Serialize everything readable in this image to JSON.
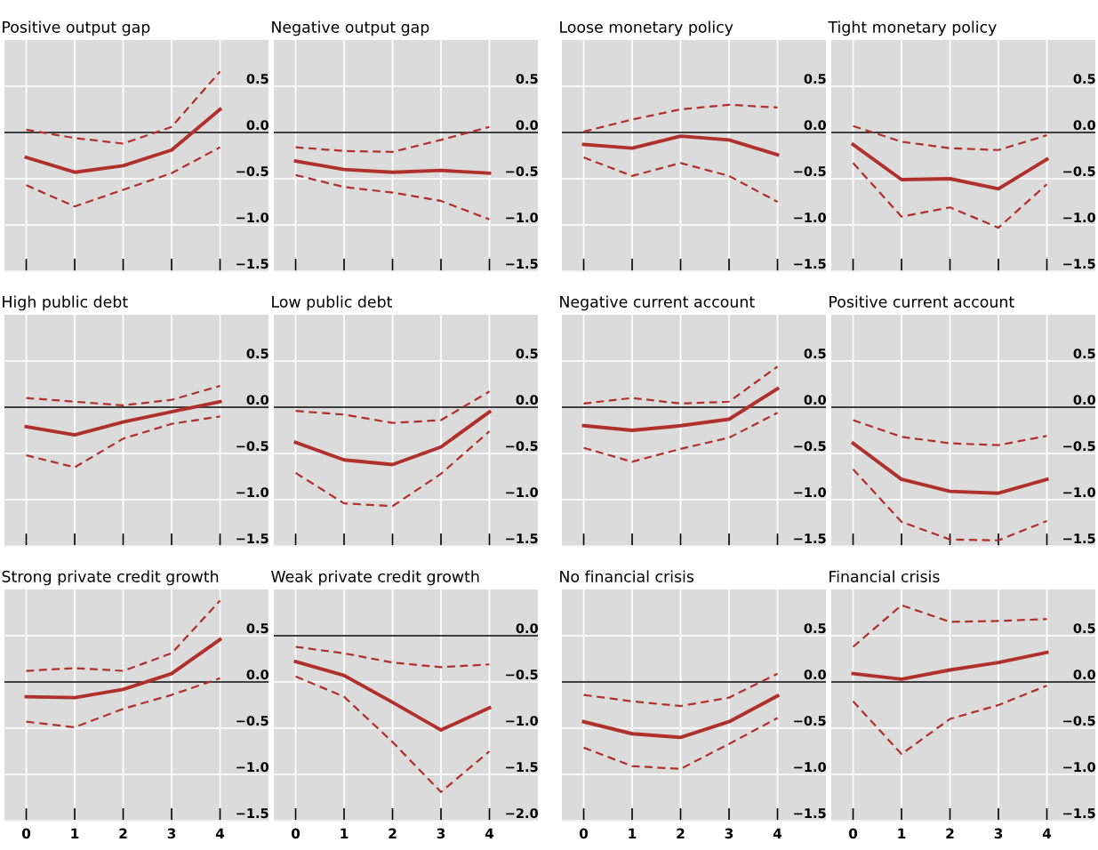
{
  "chart_data": [
    {
      "type": "line",
      "title": "Positive output gap",
      "x": [
        0,
        1,
        2,
        3,
        4
      ],
      "xlim": [
        -0.45,
        5.0
      ],
      "xticks": [
        0,
        1,
        2,
        3,
        4
      ],
      "ylim": [
        -1.5,
        1.0
      ],
      "yticks": [
        {
          "value": 0.5,
          "label": "0.5"
        },
        {
          "value": 0,
          "label": "0.0"
        },
        {
          "value": -0.5,
          "label": "−0.5"
        },
        {
          "value": -1.0,
          "label": "−1.0"
        },
        {
          "value": -1.5,
          "label": "−1.5"
        }
      ],
      "grid": true,
      "tick_labels": "y",
      "ref_lines": [
        {
          "axis": "y",
          "value": 0,
          "color": "#000000"
        }
      ],
      "series": [
        {
          "color": "#b0302c",
          "line_style": "solid",
          "values": [
            -0.27,
            -0.43,
            -0.36,
            -0.19,
            0.25
          ]
        },
        {
          "color": "#b0302c",
          "line_style": "dashed",
          "values": [
            0.03,
            -0.06,
            -0.12,
            0.06,
            0.66
          ]
        },
        {
          "color": "#b0302c",
          "line_style": "dashed",
          "values": [
            -0.57,
            -0.8,
            -0.62,
            -0.44,
            -0.16
          ]
        }
      ]
    },
    {
      "type": "line",
      "title": "Negative output gap",
      "x": [
        0,
        1,
        2,
        3,
        4
      ],
      "xlim": [
        -0.45,
        5.0
      ],
      "xticks": [
        0,
        1,
        2,
        3,
        4
      ],
      "ylim": [
        -1.5,
        1.0
      ],
      "yticks": [
        {
          "value": 0.5,
          "label": "0.5"
        },
        {
          "value": 0,
          "label": "0.0"
        },
        {
          "value": -0.5,
          "label": "−0.5"
        },
        {
          "value": -1.0,
          "label": "−1.0"
        },
        {
          "value": -1.5,
          "label": "−1.5"
        }
      ],
      "grid": true,
      "tick_labels": "y",
      "ref_lines": [
        {
          "axis": "y",
          "value": 0,
          "color": "#000000"
        }
      ],
      "series": [
        {
          "color": "#b0302c",
          "line_style": "solid",
          "values": [
            -0.31,
            -0.4,
            -0.43,
            -0.41,
            -0.44
          ]
        },
        {
          "color": "#b0302c",
          "line_style": "dashed",
          "values": [
            -0.16,
            -0.2,
            -0.21,
            -0.08,
            0.06
          ]
        },
        {
          "color": "#b0302c",
          "line_style": "dashed",
          "values": [
            -0.46,
            -0.59,
            -0.65,
            -0.74,
            -0.94
          ]
        }
      ]
    },
    {
      "type": "line",
      "title": "Loose monetary policy",
      "x": [
        0,
        1,
        2,
        3,
        4
      ],
      "xlim": [
        -0.45,
        5.0
      ],
      "xticks": [
        0,
        1,
        2,
        3,
        4
      ],
      "ylim": [
        -1.5,
        1.0
      ],
      "yticks": [
        {
          "value": 0.5,
          "label": "0.5"
        },
        {
          "value": 0,
          "label": "0.0"
        },
        {
          "value": -0.5,
          "label": "−0.5"
        },
        {
          "value": -1.0,
          "label": "−1.0"
        },
        {
          "value": -1.5,
          "label": "−1.5"
        }
      ],
      "grid": true,
      "tick_labels": "y",
      "ref_lines": [
        {
          "axis": "y",
          "value": 0,
          "color": "#000000"
        }
      ],
      "series": [
        {
          "color": "#b0302c",
          "line_style": "solid",
          "values": [
            -0.13,
            -0.17,
            -0.04,
            -0.08,
            -0.24
          ]
        },
        {
          "color": "#b0302c",
          "line_style": "dashed",
          "values": [
            0.01,
            0.14,
            0.25,
            0.3,
            0.27
          ]
        },
        {
          "color": "#b0302c",
          "line_style": "dashed",
          "values": [
            -0.27,
            -0.47,
            -0.33,
            -0.47,
            -0.75
          ]
        }
      ]
    },
    {
      "type": "line",
      "title": "Tight monetary policy",
      "x": [
        0,
        1,
        2,
        3,
        4
      ],
      "xlim": [
        -0.45,
        5.0
      ],
      "xticks": [
        0,
        1,
        2,
        3,
        4
      ],
      "ylim": [
        -1.5,
        1.0
      ],
      "yticks": [
        {
          "value": 0.5,
          "label": "0.5"
        },
        {
          "value": 0,
          "label": "0.0"
        },
        {
          "value": -0.5,
          "label": "−0.5"
        },
        {
          "value": -1.0,
          "label": "−1.0"
        },
        {
          "value": -1.5,
          "label": "−1.5"
        }
      ],
      "grid": true,
      "tick_labels": "y",
      "ref_lines": [
        {
          "axis": "y",
          "value": 0,
          "color": "#000000"
        }
      ],
      "series": [
        {
          "color": "#b0302c",
          "line_style": "solid",
          "values": [
            -0.13,
            -0.51,
            -0.5,
            -0.61,
            -0.29
          ]
        },
        {
          "color": "#b0302c",
          "line_style": "dashed",
          "values": [
            0.07,
            -0.1,
            -0.17,
            -0.19,
            -0.03
          ]
        },
        {
          "color": "#b0302c",
          "line_style": "dashed",
          "values": [
            -0.33,
            -0.91,
            -0.81,
            -1.03,
            -0.56
          ]
        }
      ]
    },
    {
      "type": "line",
      "title": "High public debt",
      "x": [
        0,
        1,
        2,
        3,
        4
      ],
      "xlim": [
        -0.45,
        5.0
      ],
      "xticks": [
        0,
        1,
        2,
        3,
        4
      ],
      "ylim": [
        -1.5,
        1.0
      ],
      "yticks": [
        {
          "value": 0.5,
          "label": "0.5"
        },
        {
          "value": 0,
          "label": "0.0"
        },
        {
          "value": -0.5,
          "label": "−0.5"
        },
        {
          "value": -1.0,
          "label": "−1.0"
        },
        {
          "value": -1.5,
          "label": "−1.5"
        }
      ],
      "grid": true,
      "tick_labels": "y",
      "ref_lines": [
        {
          "axis": "y",
          "value": 0,
          "color": "#000000"
        }
      ],
      "series": [
        {
          "color": "#b0302c",
          "line_style": "solid",
          "values": [
            -0.21,
            -0.3,
            -0.16,
            -0.05,
            0.06
          ]
        },
        {
          "color": "#b0302c",
          "line_style": "dashed",
          "values": [
            0.1,
            0.06,
            0.02,
            0.08,
            0.23
          ]
        },
        {
          "color": "#b0302c",
          "line_style": "dashed",
          "values": [
            -0.52,
            -0.65,
            -0.34,
            -0.18,
            -0.1
          ]
        }
      ]
    },
    {
      "type": "line",
      "title": "Low public debt",
      "x": [
        0,
        1,
        2,
        3,
        4
      ],
      "xlim": [
        -0.45,
        5.0
      ],
      "xticks": [
        0,
        1,
        2,
        3,
        4
      ],
      "ylim": [
        -1.5,
        1.0
      ],
      "yticks": [
        {
          "value": 0.5,
          "label": "0.5"
        },
        {
          "value": 0,
          "label": "0.0"
        },
        {
          "value": -0.5,
          "label": "−0.5"
        },
        {
          "value": -1.0,
          "label": "−1.0"
        },
        {
          "value": -1.5,
          "label": "−1.5"
        }
      ],
      "grid": true,
      "tick_labels": "y",
      "ref_lines": [
        {
          "axis": "y",
          "value": 0,
          "color": "#000000"
        }
      ],
      "series": [
        {
          "color": "#b0302c",
          "line_style": "solid",
          "values": [
            -0.38,
            -0.57,
            -0.62,
            -0.43,
            -0.05
          ]
        },
        {
          "color": "#b0302c",
          "line_style": "dashed",
          "values": [
            -0.04,
            -0.08,
            -0.17,
            -0.14,
            0.17
          ]
        },
        {
          "color": "#b0302c",
          "line_style": "dashed",
          "values": [
            -0.71,
            -1.04,
            -1.07,
            -0.72,
            -0.26
          ]
        }
      ]
    },
    {
      "type": "line",
      "title": "Negative current account",
      "x": [
        0,
        1,
        2,
        3,
        4
      ],
      "xlim": [
        -0.45,
        5.0
      ],
      "xticks": [
        0,
        1,
        2,
        3,
        4
      ],
      "ylim": [
        -1.5,
        1.0
      ],
      "yticks": [
        {
          "value": 0.5,
          "label": "0.5"
        },
        {
          "value": 0,
          "label": "0.0"
        },
        {
          "value": -0.5,
          "label": "−0.5"
        },
        {
          "value": -1.0,
          "label": "−1.0"
        },
        {
          "value": -1.5,
          "label": "−1.5"
        }
      ],
      "grid": true,
      "tick_labels": "y",
      "ref_lines": [
        {
          "axis": "y",
          "value": 0,
          "color": "#000000"
        }
      ],
      "series": [
        {
          "color": "#b0302c",
          "line_style": "solid",
          "values": [
            -0.2,
            -0.25,
            -0.2,
            -0.13,
            0.2
          ]
        },
        {
          "color": "#b0302c",
          "line_style": "dashed",
          "values": [
            0.04,
            0.1,
            0.04,
            0.06,
            0.44
          ]
        },
        {
          "color": "#b0302c",
          "line_style": "dashed",
          "values": [
            -0.44,
            -0.59,
            -0.45,
            -0.33,
            -0.06
          ]
        }
      ]
    },
    {
      "type": "line",
      "title": "Positive current account",
      "x": [
        0,
        1,
        2,
        3,
        4
      ],
      "xlim": [
        -0.45,
        5.0
      ],
      "xticks": [
        0,
        1,
        2,
        3,
        4
      ],
      "ylim": [
        -1.5,
        1.0
      ],
      "yticks": [
        {
          "value": 0.5,
          "label": "0.5"
        },
        {
          "value": 0,
          "label": "0.0"
        },
        {
          "value": -0.5,
          "label": "−0.5"
        },
        {
          "value": -1.0,
          "label": "−1.0"
        },
        {
          "value": -1.5,
          "label": "−1.5"
        }
      ],
      "grid": true,
      "tick_labels": "y",
      "ref_lines": [
        {
          "axis": "y",
          "value": 0,
          "color": "#000000"
        }
      ],
      "series": [
        {
          "color": "#b0302c",
          "line_style": "solid",
          "values": [
            -0.39,
            -0.78,
            -0.91,
            -0.93,
            -0.78
          ]
        },
        {
          "color": "#b0302c",
          "line_style": "dashed",
          "values": [
            -0.14,
            -0.32,
            -0.39,
            -0.41,
            -0.31
          ]
        },
        {
          "color": "#b0302c",
          "line_style": "dashed",
          "values": [
            -0.67,
            -1.24,
            -1.43,
            -1.44,
            -1.23
          ]
        }
      ]
    },
    {
      "type": "line",
      "title": "Strong private credit growth",
      "x": [
        0,
        1,
        2,
        3,
        4
      ],
      "xlim": [
        -0.45,
        5.0
      ],
      "xticks": [
        0,
        1,
        2,
        3,
        4
      ],
      "ylim": [
        -1.5,
        1.0
      ],
      "yticks": [
        {
          "value": 0.5,
          "label": "0.5"
        },
        {
          "value": 0,
          "label": "0.0"
        },
        {
          "value": -0.5,
          "label": "−0.5"
        },
        {
          "value": -1.0,
          "label": "−1.0"
        },
        {
          "value": -1.5,
          "label": "−1.5"
        }
      ],
      "grid": true,
      "ref_lines": [
        {
          "axis": "y",
          "value": 0,
          "color": "#000000"
        }
      ],
      "series": [
        {
          "color": "#b0302c",
          "line_style": "solid",
          "values": [
            -0.16,
            -0.17,
            -0.08,
            0.09,
            0.46
          ]
        },
        {
          "color": "#b0302c",
          "line_style": "dashed",
          "values": [
            0.12,
            0.15,
            0.12,
            0.31,
            0.88
          ]
        },
        {
          "color": "#b0302c",
          "line_style": "dashed",
          "values": [
            -0.43,
            -0.49,
            -0.29,
            -0.14,
            0.04
          ]
        }
      ]
    },
    {
      "type": "line",
      "title": "Weak private credit growth",
      "x": [
        0,
        1,
        2,
        3,
        4
      ],
      "xlim": [
        -0.45,
        5.0
      ],
      "xticks": [
        0,
        1,
        2,
        3,
        4
      ],
      "ylim": [
        -2.0,
        0.5
      ],
      "yticks": [
        {
          "value": 0,
          "label": "0.0"
        },
        {
          "value": -0.5,
          "label": "−0.5"
        },
        {
          "value": -1.0,
          "label": "−1.0"
        },
        {
          "value": -1.5,
          "label": "−1.5"
        },
        {
          "value": -2.0,
          "label": "−2.0"
        }
      ],
      "grid": true,
      "ref_lines": [
        {
          "axis": "y",
          "value": 0,
          "color": "#000000"
        }
      ],
      "series": [
        {
          "color": "#b0302c",
          "line_style": "solid",
          "values": [
            -0.28,
            -0.43,
            -0.72,
            -1.02,
            -0.78
          ]
        },
        {
          "color": "#b0302c",
          "line_style": "dashed",
          "values": [
            -0.12,
            -0.19,
            -0.29,
            -0.34,
            -0.31
          ]
        },
        {
          "color": "#b0302c",
          "line_style": "dashed",
          "values": [
            -0.44,
            -0.66,
            -1.15,
            -1.69,
            -1.25
          ]
        }
      ]
    },
    {
      "type": "line",
      "title": "No financial crisis",
      "x": [
        0,
        1,
        2,
        3,
        4
      ],
      "xlim": [
        -0.45,
        5.0
      ],
      "xticks": [
        0,
        1,
        2,
        3,
        4
      ],
      "ylim": [
        -1.5,
        1.0
      ],
      "yticks": [
        {
          "value": 0.5,
          "label": "0.5"
        },
        {
          "value": 0,
          "label": "0.0"
        },
        {
          "value": -0.5,
          "label": "−0.5"
        },
        {
          "value": -1.0,
          "label": "−1.0"
        },
        {
          "value": -1.5,
          "label": "−1.5"
        }
      ],
      "grid": true,
      "ref_lines": [
        {
          "axis": "y",
          "value": 0,
          "color": "#000000"
        }
      ],
      "series": [
        {
          "color": "#b0302c",
          "line_style": "solid",
          "values": [
            -0.43,
            -0.56,
            -0.6,
            -0.43,
            -0.15
          ]
        },
        {
          "color": "#b0302c",
          "line_style": "dashed",
          "values": [
            -0.14,
            -0.21,
            -0.26,
            -0.17,
            0.09
          ]
        },
        {
          "color": "#b0302c",
          "line_style": "dashed",
          "values": [
            -0.71,
            -0.91,
            -0.94,
            -0.67,
            -0.39
          ]
        }
      ]
    },
    {
      "type": "line",
      "title": "Financial crisis",
      "x": [
        0,
        1,
        2,
        3,
        4
      ],
      "xlim": [
        -0.45,
        5.0
      ],
      "xticks": [
        0,
        1,
        2,
        3,
        4
      ],
      "ylim": [
        -1.5,
        1.0
      ],
      "yticks": [
        {
          "value": 0.5,
          "label": "0.5"
        },
        {
          "value": 0,
          "label": "0.0"
        },
        {
          "value": -0.5,
          "label": "−0.5"
        },
        {
          "value": -1.0,
          "label": "−1.0"
        },
        {
          "value": -1.5,
          "label": "−1.5"
        }
      ],
      "grid": true,
      "ref_lines": [
        {
          "axis": "y",
          "value": 0,
          "color": "#000000"
        }
      ],
      "series": [
        {
          "color": "#b0302c",
          "line_style": "solid",
          "values": [
            0.09,
            0.03,
            0.13,
            0.21,
            0.32
          ]
        },
        {
          "color": "#b0302c",
          "line_style": "dashed",
          "values": [
            0.38,
            0.83,
            0.65,
            0.66,
            0.68
          ]
        },
        {
          "color": "#b0302c",
          "line_style": "dashed",
          "values": [
            -0.21,
            -0.78,
            -0.4,
            -0.25,
            -0.04
          ]
        }
      ]
    }
  ]
}
